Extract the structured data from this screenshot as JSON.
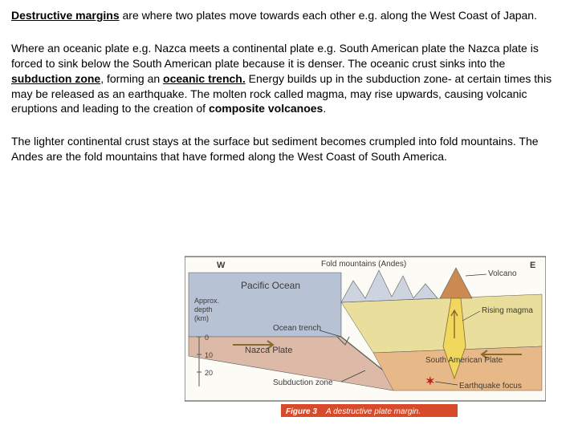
{
  "paragraph1": {
    "lead_bu": "Destructive margins",
    "rest": " are where two plates move towards each other e.g. along the West Coast of Japan."
  },
  "paragraph2": {
    "t1": "Where an oceanic plate e.g. Nazca meets a continental plate e.g. South American plate the Nazca plate is forced to sink below the South American plate because it is denser. The oceanic crust sinks into the ",
    "k1": "subduction zone",
    "t2": ", forming an ",
    "k2": "oceanic trench.",
    "t3": " Energy builds up in the subduction zone- at certain times this may be released as an earthquake. The molten rock called magma, may rise upwards, causing volcanic eruptions and leading to the creation of ",
    "k3": "composite volcanoes",
    "t4": "."
  },
  "paragraph3": {
    "t1": "The lighter continental crust stays at the surface but sediment becomes crumpled into fold mountains. The Andes are the fold mountains that have formed along the West Coast of South America."
  },
  "diagram": {
    "labels": {
      "w": "W",
      "e": "E",
      "fold_mountains": "Fold mountains (Andes)",
      "pacific": "Pacific Ocean",
      "volcano": "Volcano",
      "rising_magma": "Rising magma",
      "ocean_trench": "Ocean trench",
      "nazca": "Nazca Plate",
      "sa_plate": "South American Plate",
      "subduction": "Subduction zone",
      "eq_focus": "Earthquake focus",
      "depth_label": "Approx.\ndepth\n(km)",
      "d0": "0",
      "d10": "10",
      "d20": "20",
      "caption_fig": "Figure 3",
      "caption_text": "A destructive plate margin."
    },
    "colors": {
      "ocean": "#b7c2d4",
      "ocean_top": "#a9b6cc",
      "nazca": "#dcbaa7",
      "sa_upper": "#e9de9b",
      "sa_lower": "#e7b888",
      "mountain": "#cdd4df",
      "magma": "#f0d75e",
      "volcano": "#ca8a52",
      "line": "#5a5a5a",
      "arrow": "#8a6a2c",
      "caption_bg": "#d74a2a",
      "caption_text": "#ffffff",
      "border": "#3a3a3a",
      "label": "#3b3b3b"
    }
  }
}
